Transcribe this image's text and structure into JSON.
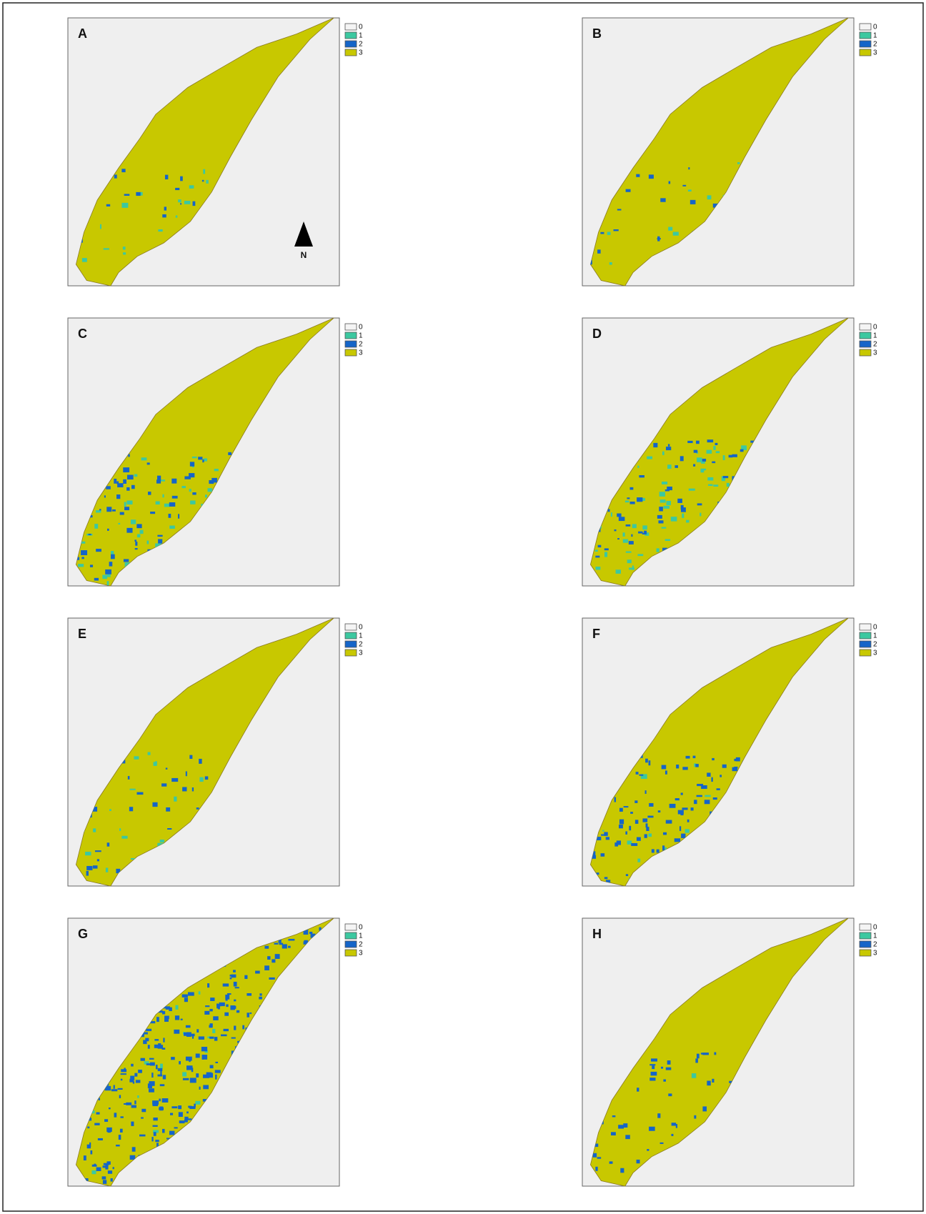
{
  "panels": [
    {
      "label": "A",
      "legend": [
        "0",
        "1",
        "2",
        "3"
      ]
    },
    {
      "label": "B",
      "legend": [
        "0",
        "1",
        "2",
        "3"
      ]
    },
    {
      "label": "C",
      "legend": [
        "0",
        "1",
        "2",
        "3"
      ]
    },
    {
      "label": "D",
      "legend": [
        "0",
        "1",
        "2",
        "3"
      ]
    },
    {
      "label": "E",
      "legend": [
        "0",
        "1",
        "2",
        "3"
      ]
    },
    {
      "label": "F",
      "legend": [
        "0",
        "1",
        "2",
        "3"
      ]
    },
    {
      "label": "G",
      "legend": [
        "0",
        "1",
        "2",
        "3"
      ]
    },
    {
      "label": "H",
      "legend": [
        "0",
        "1",
        "2",
        "3"
      ]
    }
  ],
  "north_arrow": "N"
}
